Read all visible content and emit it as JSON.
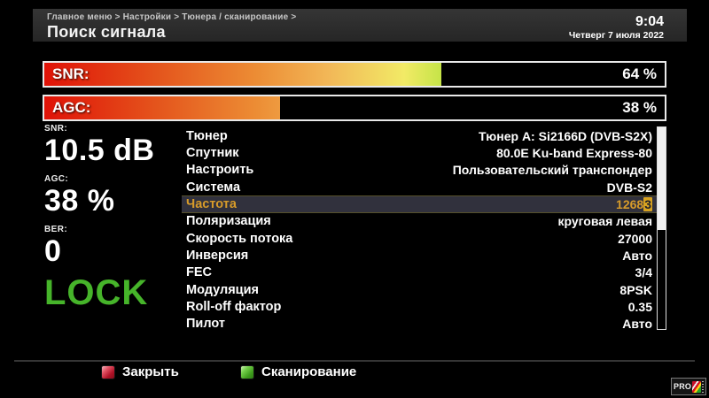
{
  "header": {
    "breadcrumb": "Главное меню > Настройки > Тюнера / сканирование >",
    "title": "Поиск сигнала",
    "time": "9:04",
    "date": "Четверг 7 июля 2022"
  },
  "meters": [
    {
      "label": "SNR:",
      "value_text": "64 %",
      "percent": 64
    },
    {
      "label": "AGC:",
      "value_text": "38 %",
      "percent": 38
    }
  ],
  "stats": {
    "snr_label": "SNR:",
    "snr_value": "10.5 dB",
    "agc_label": "AGC:",
    "agc_value": "38 %",
    "ber_label": "BER:",
    "ber_value": "0",
    "lock_text": "LOCK"
  },
  "settings": {
    "rows": [
      {
        "label": "Тюнер",
        "value": "Тюнер A: Si2166D (DVB-S2X)",
        "selected": false
      },
      {
        "label": "Спутник",
        "value": "80.0E Ku-band Express-80",
        "selected": false
      },
      {
        "label": "Настроить",
        "value": "Пользовательский транспондер",
        "selected": false
      },
      {
        "label": "Система",
        "value": "DVB-S2",
        "selected": false
      },
      {
        "label": "Частота",
        "value": "12683",
        "selected": true,
        "edit_cursor_on_last_char": true
      },
      {
        "label": "Поляризация",
        "value": "круговая левая",
        "selected": false
      },
      {
        "label": "Скорость потока",
        "value": "27000",
        "selected": false
      },
      {
        "label": "Инверсия",
        "value": "Авто",
        "selected": false
      },
      {
        "label": "FEC",
        "value": "3/4",
        "selected": false
      },
      {
        "label": "Модуляция",
        "value": "8PSK",
        "selected": false
      },
      {
        "label": "Roll-off фактор",
        "value": "0.35",
        "selected": false
      },
      {
        "label": "Пилот",
        "value": "Авто",
        "selected": false
      }
    ],
    "scrollbar_thumb_percent": 51
  },
  "footer": {
    "buttons": [
      {
        "label": "Закрыть",
        "color": "#b01227"
      },
      {
        "label": "Сканирование",
        "color": "#3f9e1e"
      }
    ],
    "logo_text": "PRO"
  },
  "colors": {
    "lock_green": "#46b42a",
    "selected_text": "#d79b2a",
    "selected_row_bg": "#31313d",
    "meter_border": "#e9e9e9",
    "header_bg": "#2d2d2d"
  }
}
